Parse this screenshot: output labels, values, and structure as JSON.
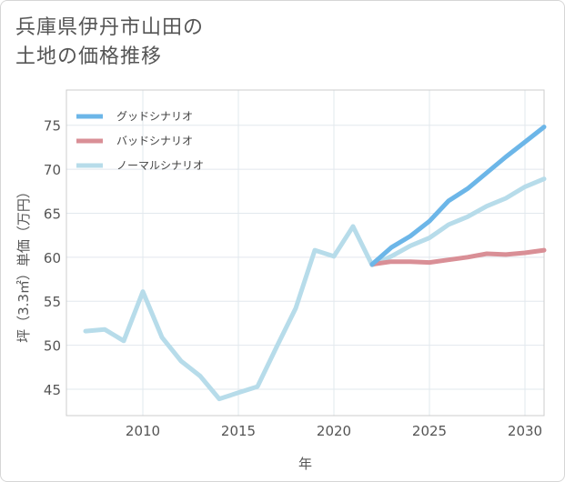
{
  "title": {
    "line1": "兵庫県伊丹市山田の",
    "line2": "土地の価格推移"
  },
  "chart_data": {
    "type": "line",
    "title": "兵庫県伊丹市山田の土地の価格推移",
    "xlabel": "年",
    "ylabel": "坪（3.3㎡）単価（万円）",
    "xlim": [
      2006,
      2031
    ],
    "ylim": [
      42,
      79
    ],
    "xticks": [
      2010,
      2015,
      2020,
      2025,
      2030
    ],
    "yticks": [
      45,
      50,
      55,
      60,
      65,
      70,
      75
    ],
    "grid": true,
    "legend_position": "top-left",
    "series": [
      {
        "name": "グッドシナリオ",
        "color": "#6cb6e8",
        "x": [
          2022,
          2023,
          2024,
          2025,
          2026,
          2027,
          2028,
          2029,
          2030,
          2031
        ],
        "y": [
          59.2,
          61.1,
          62.4,
          64.1,
          66.4,
          67.8,
          69.6,
          71.4,
          73.1,
          74.8
        ]
      },
      {
        "name": "バッドシナリオ",
        "color": "#d98f96",
        "x": [
          2022,
          2023,
          2024,
          2025,
          2026,
          2027,
          2028,
          2029,
          2030,
          2031
        ],
        "y": [
          59.2,
          59.5,
          59.5,
          59.4,
          59.7,
          60.0,
          60.4,
          60.3,
          60.5,
          60.8
        ]
      },
      {
        "name": "ノーマルシナリオ",
        "color": "#b7dcea",
        "x": [
          2007,
          2008,
          2009,
          2010,
          2011,
          2012,
          2013,
          2014,
          2015,
          2016,
          2017,
          2018,
          2019,
          2020,
          2021,
          2022,
          2023,
          2024,
          2025,
          2026,
          2027,
          2028,
          2029,
          2030,
          2031
        ],
        "y": [
          51.6,
          51.8,
          50.5,
          56.1,
          50.9,
          48.2,
          46.5,
          43.9,
          44.6,
          45.3,
          49.8,
          54.2,
          60.8,
          60.1,
          63.5,
          59.1,
          60.1,
          61.3,
          62.2,
          63.7,
          64.6,
          65.8,
          66.7,
          68.0,
          68.9
        ]
      }
    ]
  }
}
